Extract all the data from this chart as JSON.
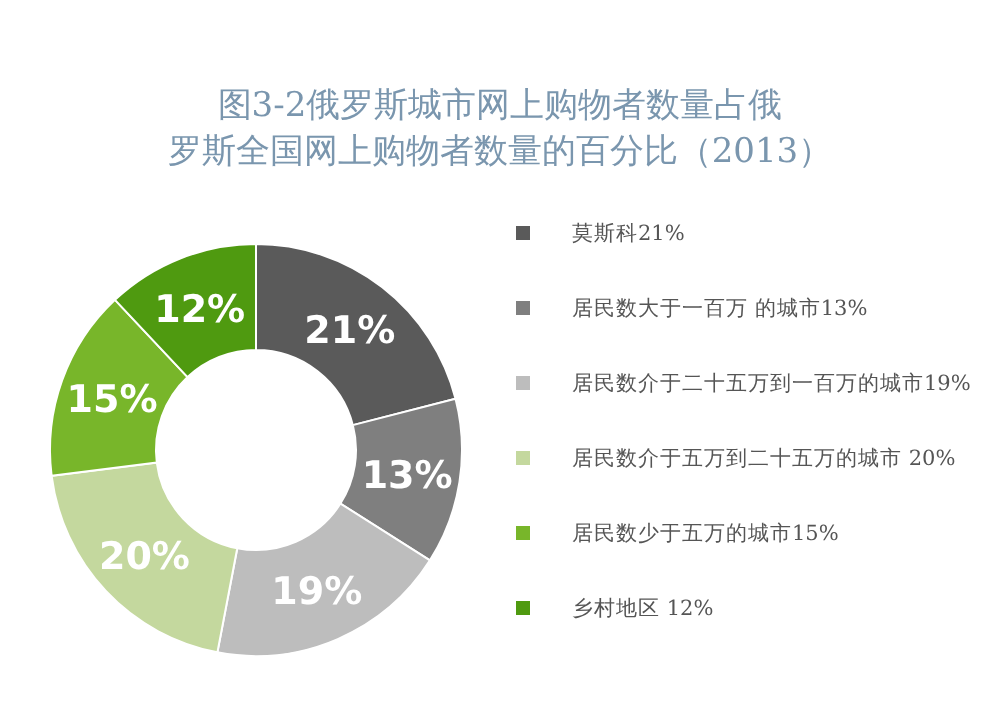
{
  "chart_data": {
    "type": "donut",
    "title": "图3-2俄罗斯城市网上购物者数量占俄罗斯全国网上购物者数量的百分比（2013）",
    "categories": [
      "莫斯科21%",
      "居民数大于一百万 的城市13%",
      "居民数介于二十五万到一百万的城市19%",
      "居民数介于五万到二十五万的城市 20%",
      "居民数少于五万的城市15%",
      "乡村地区 12%"
    ],
    "values": [
      21,
      13,
      19,
      20,
      15,
      12
    ],
    "value_labels": [
      "21%",
      "13%",
      "19%",
      "20%",
      "15%",
      "12%"
    ],
    "colors": [
      "#5a5a5a",
      "#7f7f7f",
      "#bdbdbd",
      "#c4d89e",
      "#78b62a",
      "#4f9a10"
    ],
    "legend": "right"
  }
}
